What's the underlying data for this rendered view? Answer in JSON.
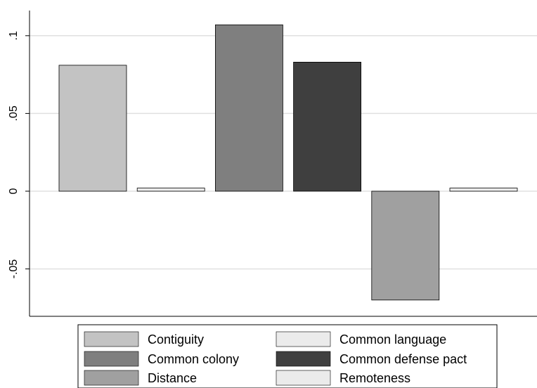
{
  "chart_data": {
    "type": "bar",
    "title": "",
    "xlabel": "",
    "ylabel": "",
    "ylim": [
      -0.07,
      0.11
    ],
    "yticks": [
      {
        "value": -0.05,
        "label": "-.05"
      },
      {
        "value": 0,
        "label": "0"
      },
      {
        "value": 0.05,
        "label": ".05"
      },
      {
        "value": 0.1,
        "label": ".1"
      }
    ],
    "grid": true,
    "legend_position": "bottom",
    "series": [
      {
        "name": "Contiguity",
        "value": 0.081,
        "color": "#c3c3c3"
      },
      {
        "name": "Common language",
        "value": 0.002,
        "color": "#ebebeb"
      },
      {
        "name": "Common colony",
        "value": 0.107,
        "color": "#7f7f7f"
      },
      {
        "name": "Common defense pact",
        "value": 0.083,
        "color": "#3f3f3f"
      },
      {
        "name": "Distance",
        "value": -0.07,
        "color": "#a0a0a0"
      },
      {
        "name": "Remoteness",
        "value": 0.002,
        "color": "#ebebeb"
      }
    ]
  }
}
